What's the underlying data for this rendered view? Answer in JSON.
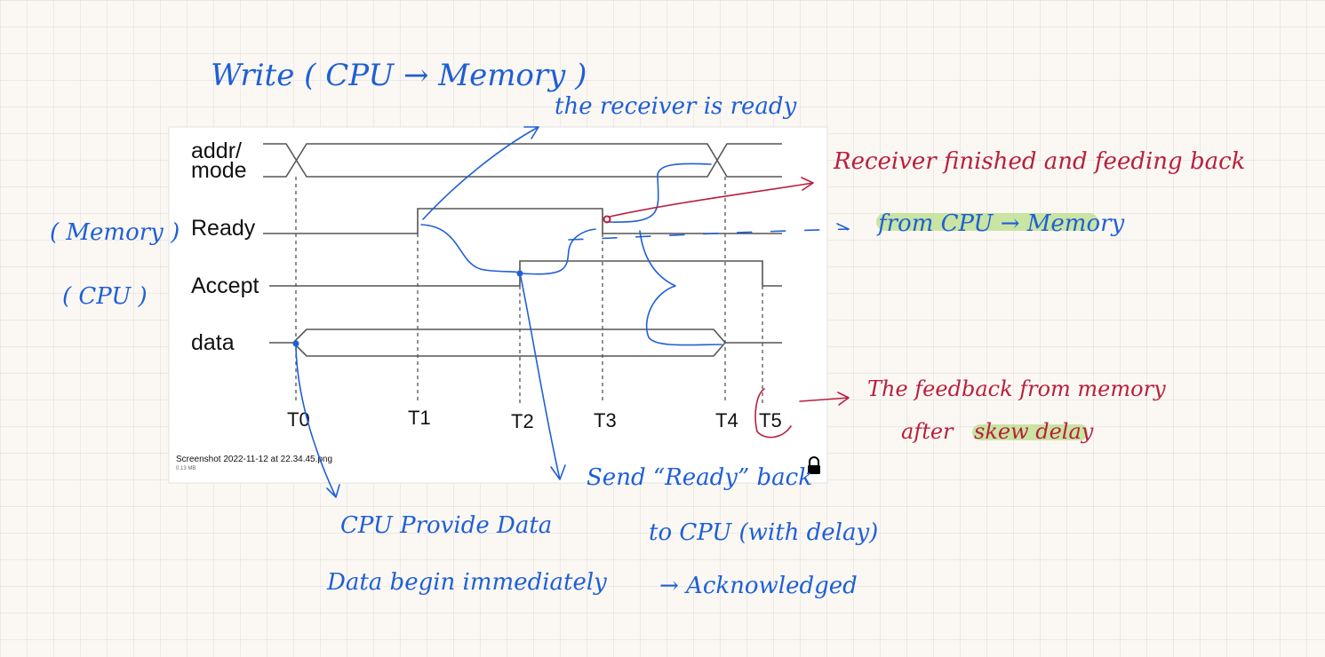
{
  "screenshot": {
    "file_name": "Screenshot 2022-11-12 at 22.34.45.png",
    "file_size": "0.13 MB",
    "lock_icon": "lock-icon"
  },
  "timing_diagram": {
    "signals": [
      "addr/",
      "mode",
      "Ready",
      "Accept",
      "data"
    ],
    "ticks": [
      "T0",
      "T1",
      "T2",
      "T3",
      "T4",
      "T5"
    ]
  },
  "notes": {
    "title": "Write ( CPU → Memory )",
    "receiver_ready": "the receiver is ready",
    "memory_label": "( Memory )",
    "cpu_label": "( CPU )",
    "receiver_finished": "Receiver finished and feeding back",
    "from_cpu": "from CPU → Memory",
    "feedback_line1": "The feedback from memory",
    "feedback_line2": "after",
    "feedback_skew": "skew delay",
    "send_ready_line1": "Send “Ready” back",
    "send_ready_line2": "to CPU (with delay)",
    "send_ready_line3": "→ Acknowledged",
    "cpu_provide_line1": "CPU Provide Data",
    "cpu_provide_line2": "Data begin immediately"
  },
  "colors": {
    "ink_blue": "#1f5fd6",
    "ink_red": "#b81f3d",
    "highlight_green": "#b9dd8a",
    "wave_gray": "#555555"
  }
}
